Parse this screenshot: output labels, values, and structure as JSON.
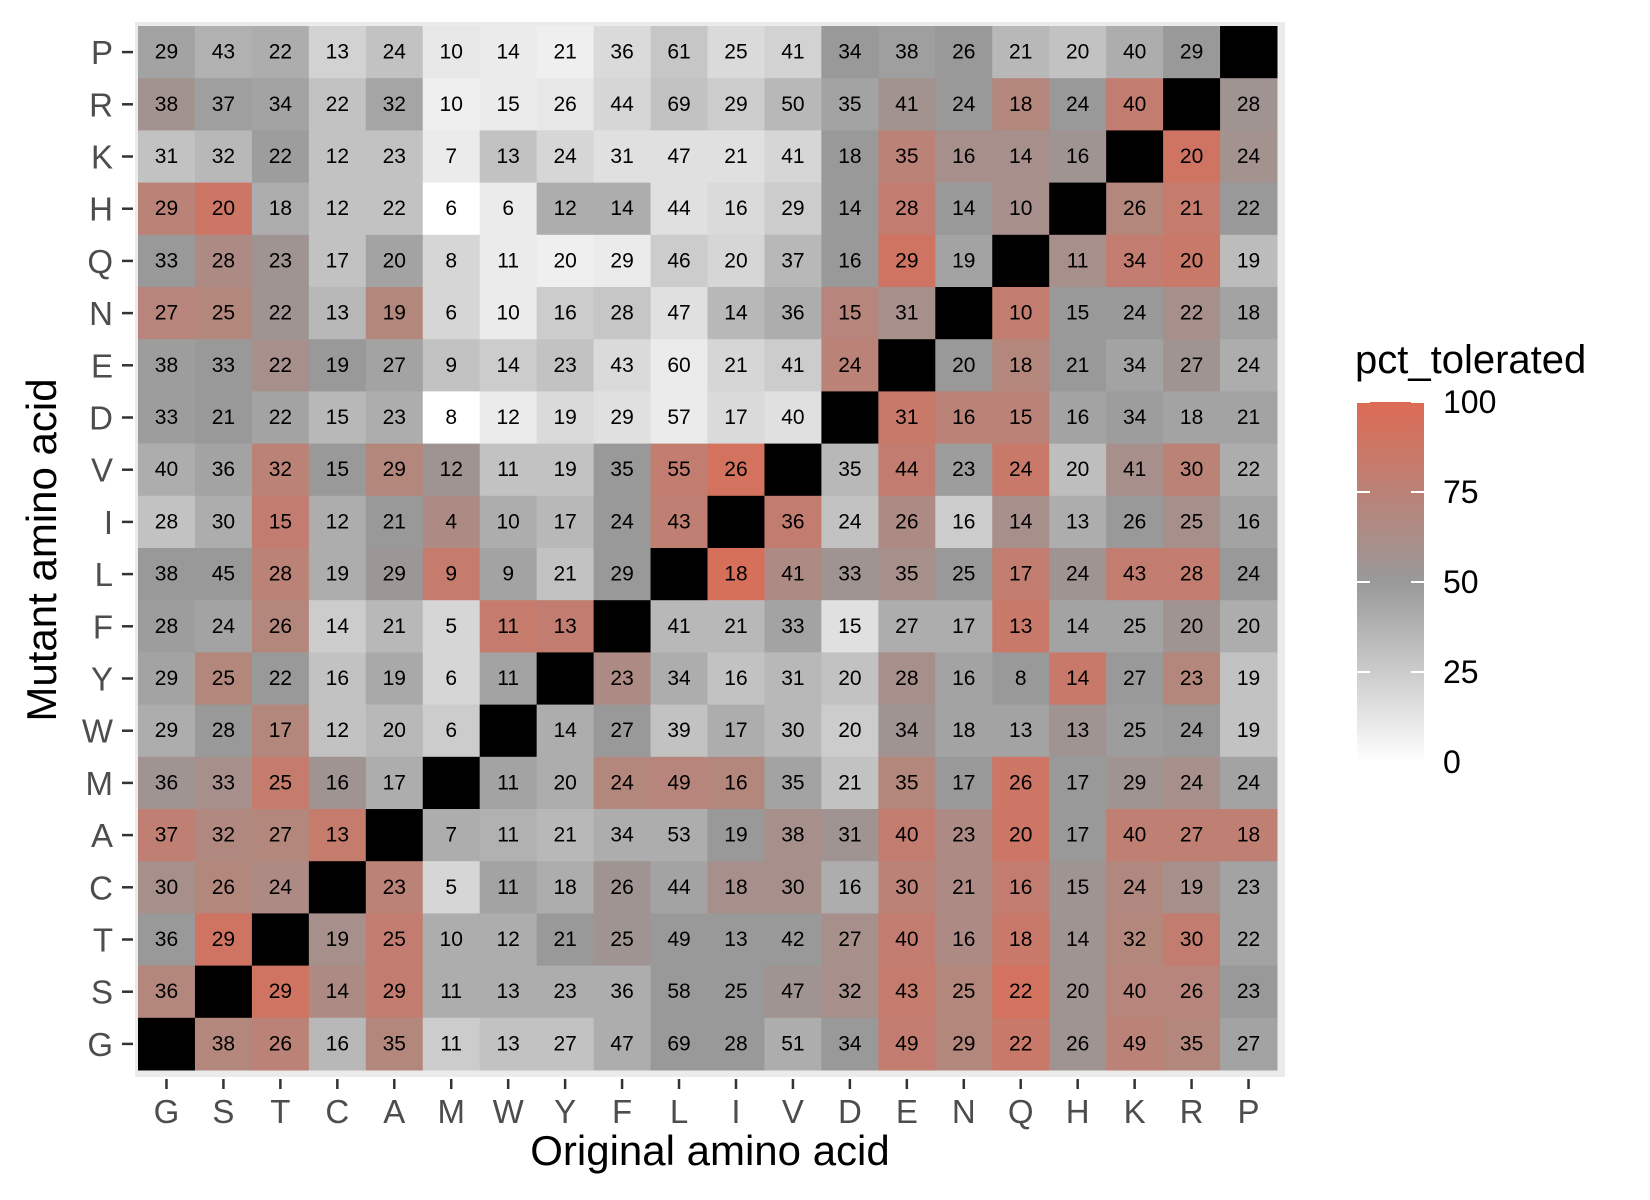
{
  "chart_data": {
    "type": "heatmap",
    "title": "",
    "xlabel": "Original amino acid",
    "ylabel": "Mutant amino acid",
    "x_categories": [
      "G",
      "S",
      "T",
      "C",
      "A",
      "M",
      "W",
      "Y",
      "F",
      "L",
      "I",
      "V",
      "D",
      "E",
      "N",
      "Q",
      "H",
      "K",
      "R",
      "P"
    ],
    "y_categories": [
      "P",
      "R",
      "K",
      "H",
      "Q",
      "N",
      "E",
      "D",
      "V",
      "I",
      "L",
      "F",
      "Y",
      "W",
      "M",
      "A",
      "C",
      "T",
      "S",
      "G"
    ],
    "grid": true,
    "diagonal_color": "#000000",
    "background_color": "#ebebeb",
    "value_labels": [
      [
        29,
        43,
        22,
        13,
        24,
        10,
        14,
        21,
        36,
        61,
        25,
        41,
        34,
        38,
        26,
        21,
        20,
        40,
        29,
        null
      ],
      [
        38,
        37,
        34,
        22,
        32,
        10,
        15,
        26,
        44,
        69,
        29,
        50,
        35,
        41,
        24,
        18,
        24,
        40,
        null,
        28
      ],
      [
        31,
        32,
        22,
        12,
        23,
        7,
        13,
        24,
        31,
        47,
        21,
        41,
        18,
        35,
        16,
        14,
        16,
        null,
        20,
        24
      ],
      [
        29,
        20,
        18,
        12,
        22,
        6,
        6,
        12,
        14,
        44,
        16,
        29,
        14,
        28,
        14,
        10,
        null,
        26,
        21,
        22
      ],
      [
        33,
        28,
        23,
        17,
        20,
        8,
        11,
        20,
        29,
        46,
        20,
        37,
        16,
        29,
        19,
        null,
        11,
        34,
        20,
        19
      ],
      [
        27,
        25,
        22,
        13,
        19,
        6,
        10,
        16,
        28,
        47,
        14,
        36,
        15,
        31,
        null,
        10,
        15,
        24,
        22,
        18
      ],
      [
        38,
        33,
        22,
        19,
        27,
        9,
        14,
        23,
        43,
        60,
        21,
        41,
        24,
        null,
        20,
        18,
        21,
        34,
        27,
        24
      ],
      [
        33,
        21,
        22,
        15,
        23,
        8,
        12,
        19,
        29,
        57,
        17,
        40,
        null,
        31,
        16,
        15,
        16,
        34,
        18,
        21
      ],
      [
        40,
        36,
        32,
        15,
        29,
        12,
        11,
        19,
        35,
        55,
        26,
        null,
        35,
        44,
        23,
        24,
        20,
        41,
        30,
        22
      ],
      [
        28,
        30,
        15,
        12,
        21,
        4,
        10,
        17,
        24,
        43,
        null,
        36,
        24,
        26,
        16,
        14,
        13,
        26,
        25,
        16
      ],
      [
        38,
        45,
        28,
        19,
        29,
        9,
        9,
        21,
        29,
        null,
        18,
        41,
        33,
        35,
        25,
        17,
        24,
        43,
        28,
        24
      ],
      [
        28,
        24,
        26,
        14,
        21,
        5,
        11,
        13,
        null,
        41,
        21,
        33,
        15,
        27,
        17,
        13,
        14,
        25,
        20,
        20
      ],
      [
        29,
        25,
        22,
        16,
        19,
        6,
        11,
        null,
        23,
        34,
        16,
        31,
        20,
        28,
        16,
        8,
        14,
        27,
        23,
        19
      ],
      [
        29,
        28,
        17,
        12,
        20,
        6,
        null,
        14,
        27,
        39,
        17,
        30,
        20,
        34,
        18,
        13,
        13,
        25,
        24,
        19
      ],
      [
        36,
        33,
        25,
        16,
        17,
        null,
        11,
        20,
        24,
        49,
        16,
        35,
        21,
        35,
        17,
        26,
        17,
        29,
        24,
        24
      ],
      [
        37,
        32,
        27,
        13,
        null,
        7,
        11,
        21,
        34,
        53,
        19,
        38,
        31,
        40,
        23,
        20,
        17,
        40,
        27,
        18
      ],
      [
        30,
        26,
        24,
        null,
        23,
        5,
        11,
        18,
        26,
        44,
        18,
        30,
        16,
        30,
        21,
        16,
        15,
        24,
        19,
        23
      ],
      [
        36,
        29,
        null,
        19,
        25,
        10,
        12,
        21,
        25,
        49,
        13,
        42,
        27,
        40,
        16,
        18,
        14,
        32,
        30,
        22
      ],
      [
        36,
        null,
        29,
        14,
        29,
        11,
        13,
        23,
        36,
        58,
        25,
        47,
        32,
        43,
        25,
        22,
        20,
        40,
        26,
        23
      ],
      [
        null,
        38,
        26,
        16,
        35,
        11,
        13,
        27,
        47,
        69,
        28,
        51,
        34,
        49,
        29,
        22,
        26,
        49,
        35,
        27
      ]
    ],
    "pct_tolerated": [
      [
        45,
        38,
        40,
        22,
        30,
        12,
        10,
        8,
        18,
        28,
        18,
        22,
        50,
        47,
        50,
        35,
        30,
        40,
        50,
        null
      ],
      [
        57,
        47,
        45,
        30,
        44,
        8,
        10,
        12,
        20,
        30,
        25,
        35,
        45,
        57,
        50,
        70,
        50,
        80,
        null,
        55
      ],
      [
        30,
        35,
        48,
        30,
        30,
        10,
        30,
        20,
        15,
        15,
        15,
        20,
        50,
        75,
        60,
        60,
        55,
        null,
        90,
        58
      ],
      [
        75,
        88,
        40,
        30,
        30,
        0,
        10,
        40,
        40,
        15,
        18,
        25,
        50,
        80,
        50,
        60,
        null,
        70,
        82,
        50
      ],
      [
        50,
        65,
        55,
        30,
        45,
        20,
        10,
        8,
        10,
        25,
        20,
        35,
        50,
        90,
        45,
        null,
        60,
        80,
        85,
        33
      ],
      [
        72,
        70,
        55,
        35,
        70,
        20,
        10,
        25,
        28,
        15,
        35,
        40,
        72,
        60,
        null,
        80,
        50,
        50,
        60,
        45
      ],
      [
        48,
        50,
        60,
        50,
        45,
        30,
        25,
        30,
        18,
        10,
        20,
        25,
        75,
        null,
        50,
        70,
        50,
        45,
        55,
        40
      ],
      [
        48,
        50,
        45,
        35,
        40,
        0,
        10,
        18,
        15,
        10,
        18,
        15,
        null,
        85,
        75,
        75,
        45,
        48,
        45,
        45
      ],
      [
        40,
        45,
        75,
        50,
        70,
        55,
        30,
        30,
        50,
        80,
        92,
        null,
        35,
        80,
        48,
        85,
        32,
        60,
        75,
        40
      ],
      [
        30,
        40,
        80,
        40,
        50,
        65,
        40,
        35,
        50,
        78,
        null,
        80,
        30,
        65,
        25,
        60,
        40,
        50,
        60,
        45
      ],
      [
        50,
        50,
        75,
        40,
        52,
        82,
        45,
        30,
        50,
        null,
        95,
        65,
        55,
        60,
        50,
        80,
        55,
        80,
        80,
        50
      ],
      [
        48,
        45,
        70,
        25,
        35,
        20,
        82,
        80,
        null,
        35,
        35,
        45,
        15,
        40,
        40,
        85,
        45,
        45,
        55,
        40
      ],
      [
        45,
        70,
        50,
        30,
        42,
        20,
        45,
        null,
        65,
        40,
        30,
        35,
        30,
        60,
        45,
        50,
        85,
        50,
        70,
        30
      ],
      [
        40,
        50,
        70,
        30,
        35,
        25,
        null,
        40,
        50,
        30,
        40,
        35,
        25,
        55,
        45,
        45,
        55,
        48,
        50,
        30
      ],
      [
        55,
        60,
        82,
        55,
        40,
        null,
        45,
        40,
        70,
        72,
        70,
        45,
        30,
        70,
        50,
        88,
        50,
        55,
        60,
        45
      ],
      [
        78,
        68,
        70,
        82,
        null,
        40,
        38,
        35,
        40,
        40,
        50,
        60,
        55,
        80,
        65,
        88,
        50,
        78,
        78,
        78
      ],
      [
        60,
        70,
        65,
        null,
        75,
        20,
        45,
        40,
        55,
        45,
        60,
        60,
        40,
        75,
        65,
        80,
        55,
        68,
        60,
        45
      ],
      [
        50,
        90,
        null,
        60,
        80,
        40,
        40,
        50,
        55,
        50,
        50,
        50,
        60,
        80,
        65,
        85,
        55,
        70,
        80,
        45
      ],
      [
        70,
        null,
        90,
        65,
        80,
        40,
        40,
        40,
        40,
        50,
        50,
        55,
        60,
        82,
        70,
        92,
        55,
        72,
        72,
        50
      ],
      [
        null,
        70,
        75,
        35,
        70,
        25,
        30,
        30,
        40,
        50,
        50,
        40,
        50,
        80,
        70,
        85,
        55,
        75,
        70,
        45
      ]
    ],
    "color_scale": {
      "title": "pct_tolerated",
      "min": 0,
      "max": 100,
      "breaks": [
        0,
        25,
        50,
        75,
        100
      ],
      "low_color": "#ffffff",
      "mid_color": "#999999",
      "high_color": "#dd6b54"
    }
  }
}
